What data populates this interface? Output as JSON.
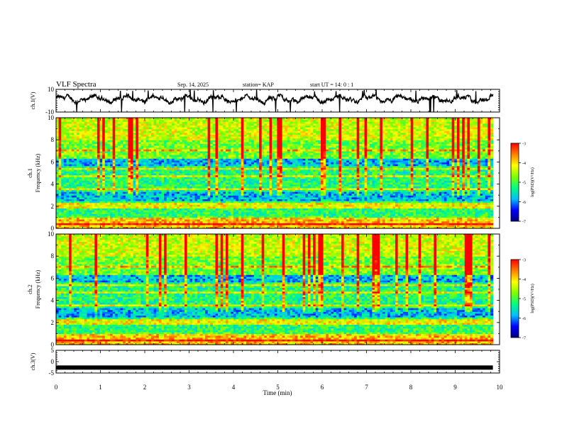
{
  "header": {
    "title": "VLF Spectra",
    "date": "Sep. 14, 2025",
    "station": "station= KAP",
    "start": "start UT =  14: 0  : 1"
  },
  "chart_data": [
    {
      "name": "waveform-ch1",
      "type": "line",
      "ylabel": "ch.1(V)",
      "ylim": [
        -10,
        10
      ],
      "yticks": [
        {
          "v": 10,
          "label": "10"
        },
        {
          "v": -10,
          "label": "-10"
        }
      ],
      "xlim": [
        0,
        10
      ],
      "series_description": "noisy waveform mostly between -4 and +6 V, mean ~1.5 V, occasional spikes to -10 V",
      "data_end_min": 9.85
    },
    {
      "name": "spectrogram-ch1",
      "type": "heatmap",
      "ylabel": "ch.1\nFrequency (kHz)",
      "ylabel_line1": "ch.1",
      "ylabel_line2": "Frequency (kHz)",
      "ylim": [
        0,
        10
      ],
      "yticks": [
        {
          "v": 0,
          "label": "0"
        },
        {
          "v": 2,
          "label": "2"
        },
        {
          "v": 4,
          "label": "4"
        },
        {
          "v": 6,
          "label": "6"
        },
        {
          "v": 8,
          "label": "8"
        },
        {
          "v": 10,
          "label": "10"
        }
      ],
      "xlim": [
        0,
        10
      ],
      "data_end_min": 9.85,
      "colorbar": {
        "label": "log(PSD)(V²/Hz)",
        "range": [
          -7,
          -3
        ],
        "ticks": [
          {
            "v": -3,
            "label": "-3"
          },
          {
            "v": -4,
            "label": "-4"
          },
          {
            "v": -5,
            "label": "-5"
          },
          {
            "v": -6,
            "label": "-6"
          },
          {
            "v": -7,
            "label": "-7"
          }
        ]
      }
    },
    {
      "name": "spectrogram-ch2",
      "type": "heatmap",
      "ylabel": "ch.2\nFrequency (kHz)",
      "ylabel_line1": "ch.2",
      "ylabel_line2": "Frequency (kHz)",
      "ylim": [
        0,
        10
      ],
      "yticks": [
        {
          "v": 0,
          "label": "0"
        },
        {
          "v": 2,
          "label": "2"
        },
        {
          "v": 4,
          "label": "4"
        },
        {
          "v": 6,
          "label": "6"
        },
        {
          "v": 8,
          "label": "8"
        },
        {
          "v": 10,
          "label": "10"
        }
      ],
      "xlim": [
        0,
        10
      ],
      "data_end_min": 9.85,
      "colorbar": {
        "label": "log(PSD)(V²/Hz)",
        "range": [
          -7,
          -3
        ],
        "ticks": [
          {
            "v": -3,
            "label": "-3"
          },
          {
            "v": -4,
            "label": "-4"
          },
          {
            "v": -5,
            "label": "-5"
          },
          {
            "v": -6,
            "label": "-6"
          },
          {
            "v": -7,
            "label": "-7"
          }
        ]
      }
    },
    {
      "name": "waveform-ch3",
      "type": "line",
      "ylabel": "ch.3(V)",
      "ylim": [
        -5,
        5
      ],
      "yticks": [
        {
          "v": 5,
          "label": "5"
        },
        {
          "v": 0,
          "label": "0"
        },
        {
          "v": -5,
          "label": "-5"
        }
      ],
      "xlim": [
        0,
        10
      ],
      "series_description": "flat thick band centered at about -2.5 V",
      "band_center_v": -2.6,
      "data_end_min": 9.85
    }
  ],
  "x_axis": {
    "label": "Time (min)",
    "range": [
      0,
      10
    ],
    "ticks": [
      {
        "v": 0,
        "label": "0"
      },
      {
        "v": 1,
        "label": "1"
      },
      {
        "v": 2,
        "label": "2"
      },
      {
        "v": 3,
        "label": "3"
      },
      {
        "v": 4,
        "label": "4"
      },
      {
        "v": 5,
        "label": "5"
      },
      {
        "v": 6,
        "label": "6"
      },
      {
        "v": 7,
        "label": "7"
      },
      {
        "v": 8,
        "label": "8"
      },
      {
        "v": 9,
        "label": "9"
      },
      {
        "v": 10,
        "label": "10"
      }
    ]
  },
  "colors": {
    "axis": "#000000",
    "colormap": [
      "#00007f",
      "#0000ff",
      "#00bfff",
      "#00ff7f",
      "#7fff00",
      "#ffff00",
      "#ff7f00",
      "#ff0000",
      "#ffffff"
    ]
  }
}
